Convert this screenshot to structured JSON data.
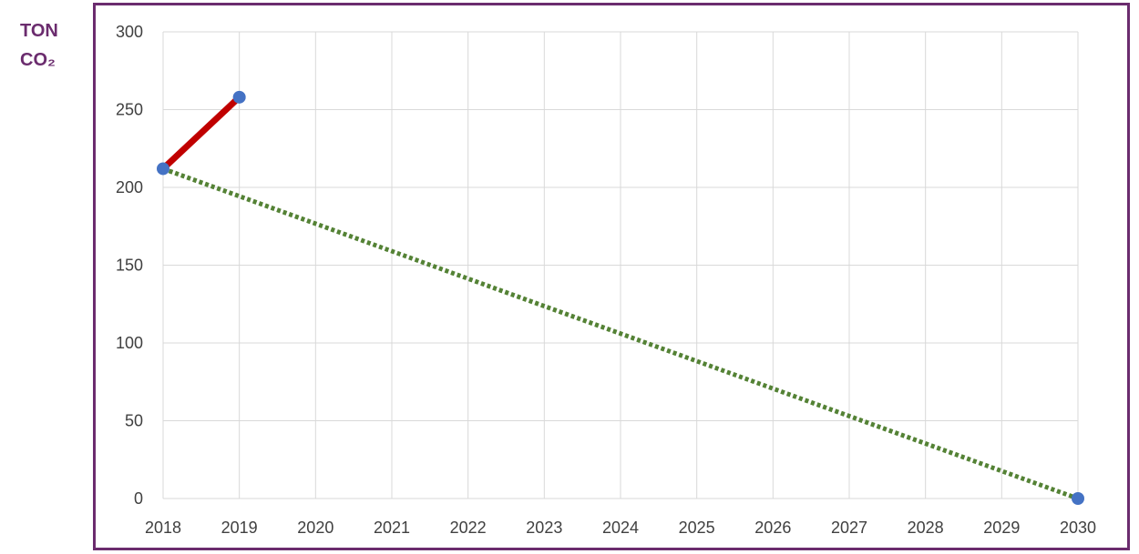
{
  "unit_label": {
    "line1": "TON",
    "line2": "CO₂"
  },
  "colors": {
    "frame": "#6b2c6e",
    "actual": "#c00000",
    "target": "#548235",
    "marker": "#4472c4",
    "grid": "#d9d9d9",
    "unit_label": "#6b2c6e"
  },
  "chart_data": {
    "type": "line",
    "x": [
      2018,
      2019,
      2020,
      2021,
      2022,
      2023,
      2024,
      2025,
      2026,
      2027,
      2028,
      2029,
      2030
    ],
    "xlim": [
      2018,
      2030
    ],
    "ylim": [
      0,
      300
    ],
    "y_ticks": [
      0,
      50,
      100,
      150,
      200,
      250,
      300
    ],
    "grid": true,
    "series": [
      {
        "style": "solid",
        "color": "#c00000",
        "points": [
          [
            2018,
            212
          ],
          [
            2019,
            258
          ]
        ]
      },
      {
        "style": "dotted",
        "color": "#548235",
        "points": [
          [
            2018,
            212
          ],
          [
            2030,
            0
          ]
        ]
      }
    ],
    "markers": [
      [
        2018,
        212
      ],
      [
        2019,
        258
      ],
      [
        2030,
        0
      ]
    ]
  }
}
